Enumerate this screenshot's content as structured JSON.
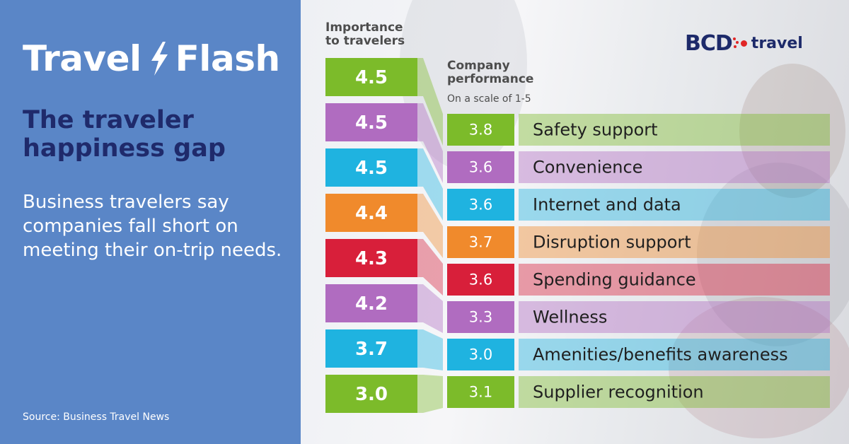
{
  "brand": {
    "title_left": "Travel",
    "title_right": "Flash"
  },
  "headline": "The traveler happiness gap",
  "subtext": "Business travelers say companies fall short on meeting their on-trip needs.",
  "source": "Source: Business Travel News",
  "logo": {
    "bcd": "BCD",
    "travel": "travel"
  },
  "colors": {
    "panel": "#5a86c7",
    "headline": "#1f2a6b",
    "green": "#7cbb2a",
    "purple": "#b06cc0",
    "blue": "#1fb3e0",
    "orange": "#f08a2c",
    "red": "#d81f3a"
  },
  "chart_data": {
    "type": "table",
    "importance_header": "Importance to travelers",
    "performance_header": "Company performance",
    "scale_note": "On a scale of 1-5",
    "rows": [
      {
        "label": "Safety support",
        "importance": "4.5",
        "performance": "3.8",
        "color": "#7cbb2a"
      },
      {
        "label": "Convenience",
        "importance": "4.5",
        "performance": "3.6",
        "color": "#b06cc0"
      },
      {
        "label": "Internet and data",
        "importance": "4.5",
        "performance": "3.6",
        "color": "#1fb3e0"
      },
      {
        "label": "Disruption support",
        "importance": "4.4",
        "performance": "3.7",
        "color": "#f08a2c"
      },
      {
        "label": "Spending guidance",
        "importance": "4.3",
        "performance": "3.6",
        "color": "#d81f3a"
      },
      {
        "label": "Wellness",
        "importance": "4.2",
        "performance": "3.3",
        "color": "#b06cc0"
      },
      {
        "label": "Amenities/benefits awareness",
        "importance": "3.7",
        "performance": "3.0",
        "color": "#1fb3e0"
      },
      {
        "label": "Supplier recognition",
        "importance": "3.0",
        "performance": "3.1",
        "color": "#7cbb2a"
      }
    ]
  }
}
